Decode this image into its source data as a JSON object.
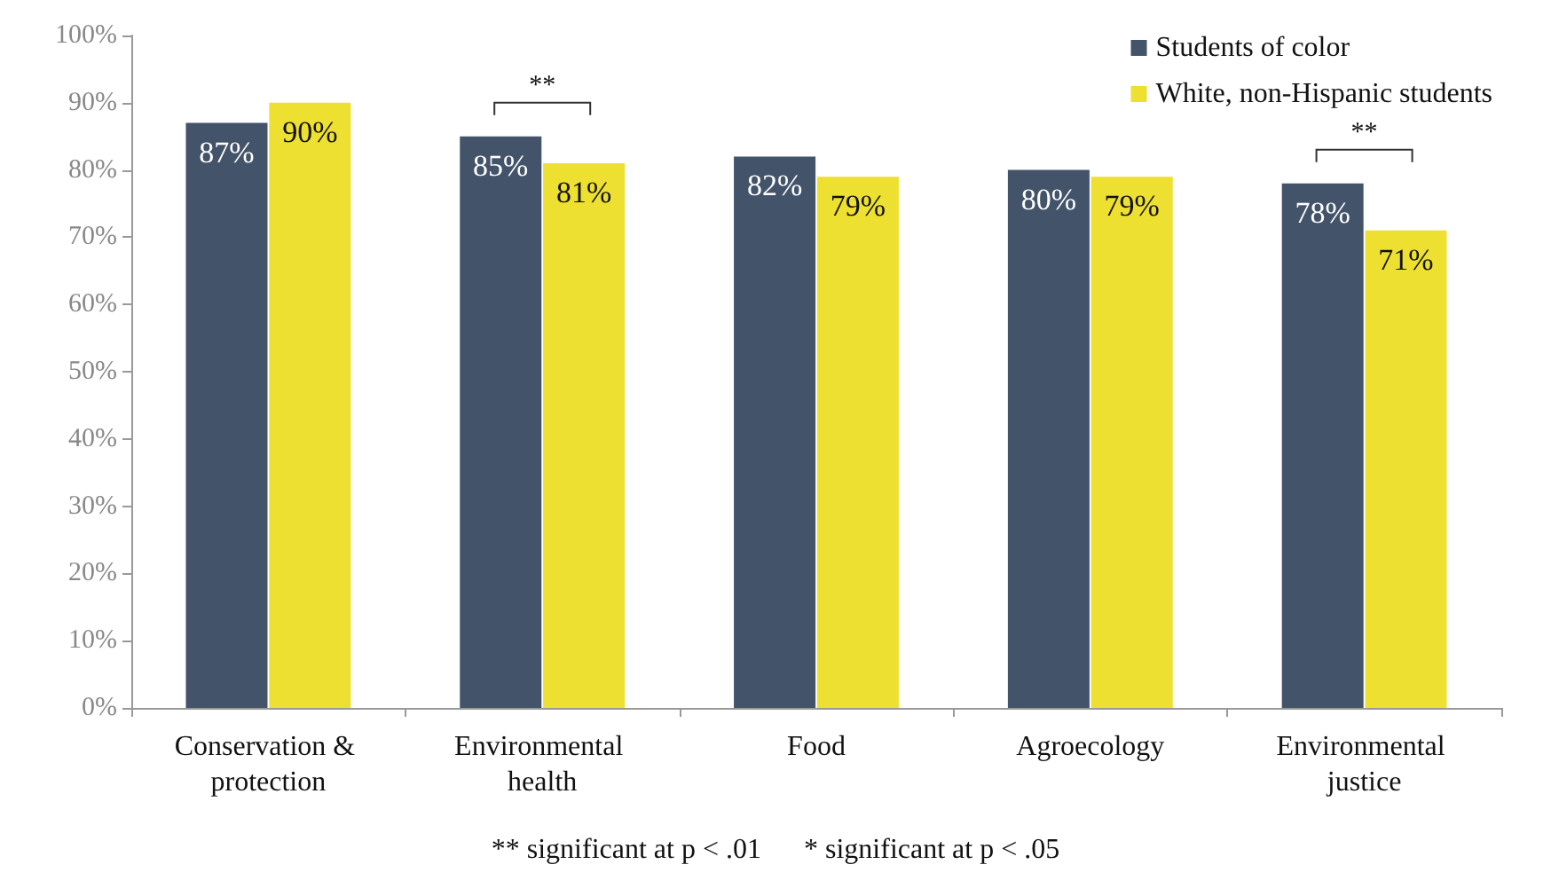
{
  "chart_data": {
    "type": "bar",
    "categories": [
      "Conservation & protection",
      "Environmental health",
      "Food",
      "Agroecology",
      "Environmental justice"
    ],
    "series": [
      {
        "name": "Students of color",
        "color": "#435369",
        "values": [
          87,
          85,
          82,
          80,
          78
        ],
        "value_labels": [
          "87%",
          "85%",
          "82%",
          "80%",
          "78%"
        ]
      },
      {
        "name": "White, non-Hispanic students",
        "color": "#ede030",
        "values": [
          90,
          81,
          79,
          79,
          71
        ],
        "value_labels": [
          "90%",
          "81%",
          "79%",
          "79%",
          "71%"
        ]
      }
    ],
    "ylim": [
      0,
      100
    ],
    "yticks": [
      {
        "value": 0,
        "label": "0%"
      },
      {
        "value": 10,
        "label": "10%"
      },
      {
        "value": 20,
        "label": "20%"
      },
      {
        "value": 30,
        "label": "30%"
      },
      {
        "value": 40,
        "label": "40%"
      },
      {
        "value": 50,
        "label": "50%"
      },
      {
        "value": 60,
        "label": "60%"
      },
      {
        "value": 70,
        "label": "70%"
      },
      {
        "value": 80,
        "label": "80%"
      },
      {
        "value": 90,
        "label": "90%"
      },
      {
        "value": 100,
        "label": "100%"
      }
    ],
    "annotations": [
      {
        "text": "**",
        "x": "Environmental health",
        "y": 85
      },
      {
        "text": "**",
        "x": "Environmental justice",
        "y": 78
      },
      "** significant at p < .01      * significant at p < .05"
    ],
    "grid": false,
    "legend": "top right"
  }
}
